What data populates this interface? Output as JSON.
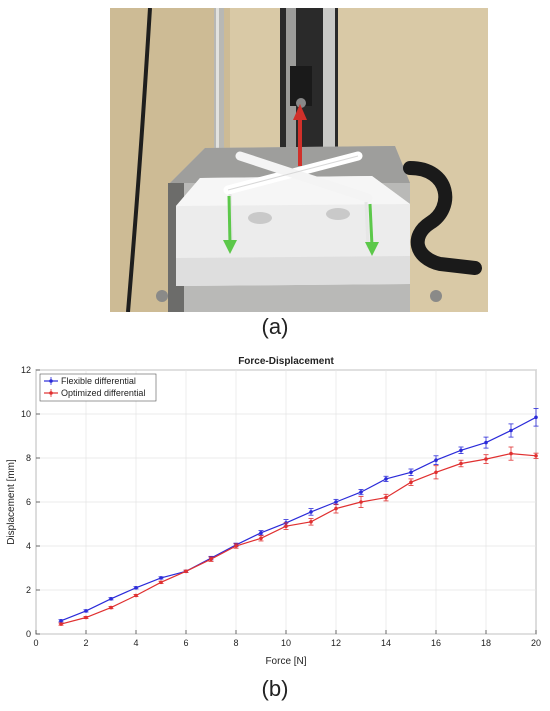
{
  "panels": {
    "a": "(a)",
    "b": "(b)"
  },
  "photo": {
    "icon": "test-rig-photo",
    "arrows": {
      "pull": "#d0302a",
      "push": "#5cc84a"
    }
  },
  "chart_data": {
    "type": "line",
    "title": "Force-Displacement",
    "xlabel": "Force [N]",
    "ylabel": "Displacement [mm]",
    "xlim": [
      0,
      20
    ],
    "ylim": [
      0,
      12
    ],
    "xticks": [
      0,
      2,
      4,
      6,
      8,
      10,
      12,
      14,
      16,
      18,
      20
    ],
    "yticks": [
      0,
      2,
      4,
      6,
      8,
      10,
      12
    ],
    "grid": true,
    "legend_position": "top-left",
    "x": [
      1,
      2,
      3,
      4,
      5,
      6,
      7,
      8,
      9,
      10,
      11,
      12,
      13,
      14,
      15,
      16,
      17,
      18,
      19,
      20
    ],
    "series": [
      {
        "name": "Flexible differential",
        "color": "#2b2bd9",
        "values": [
          0.6,
          1.05,
          1.6,
          2.1,
          2.55,
          2.85,
          3.45,
          4.05,
          4.6,
          5.05,
          5.55,
          6.0,
          6.45,
          7.05,
          7.35,
          7.9,
          8.35,
          8.7,
          9.25,
          9.85
        ],
        "errors": [
          0.05,
          0.05,
          0.05,
          0.05,
          0.05,
          0.05,
          0.08,
          0.08,
          0.1,
          0.15,
          0.15,
          0.12,
          0.12,
          0.12,
          0.15,
          0.2,
          0.15,
          0.25,
          0.3,
          0.4
        ]
      },
      {
        "name": "Optimized differential",
        "color": "#e03030",
        "values": [
          0.45,
          0.75,
          1.2,
          1.75,
          2.35,
          2.85,
          3.4,
          4.0,
          4.35,
          4.9,
          5.1,
          5.7,
          6.0,
          6.2,
          6.9,
          7.35,
          7.75,
          7.95,
          8.2,
          8.1
        ],
        "errors": [
          0.05,
          0.05,
          0.05,
          0.05,
          0.05,
          0.05,
          0.1,
          0.1,
          0.12,
          0.15,
          0.15,
          0.2,
          0.25,
          0.15,
          0.15,
          0.3,
          0.15,
          0.2,
          0.3,
          0.12
        ]
      }
    ]
  }
}
